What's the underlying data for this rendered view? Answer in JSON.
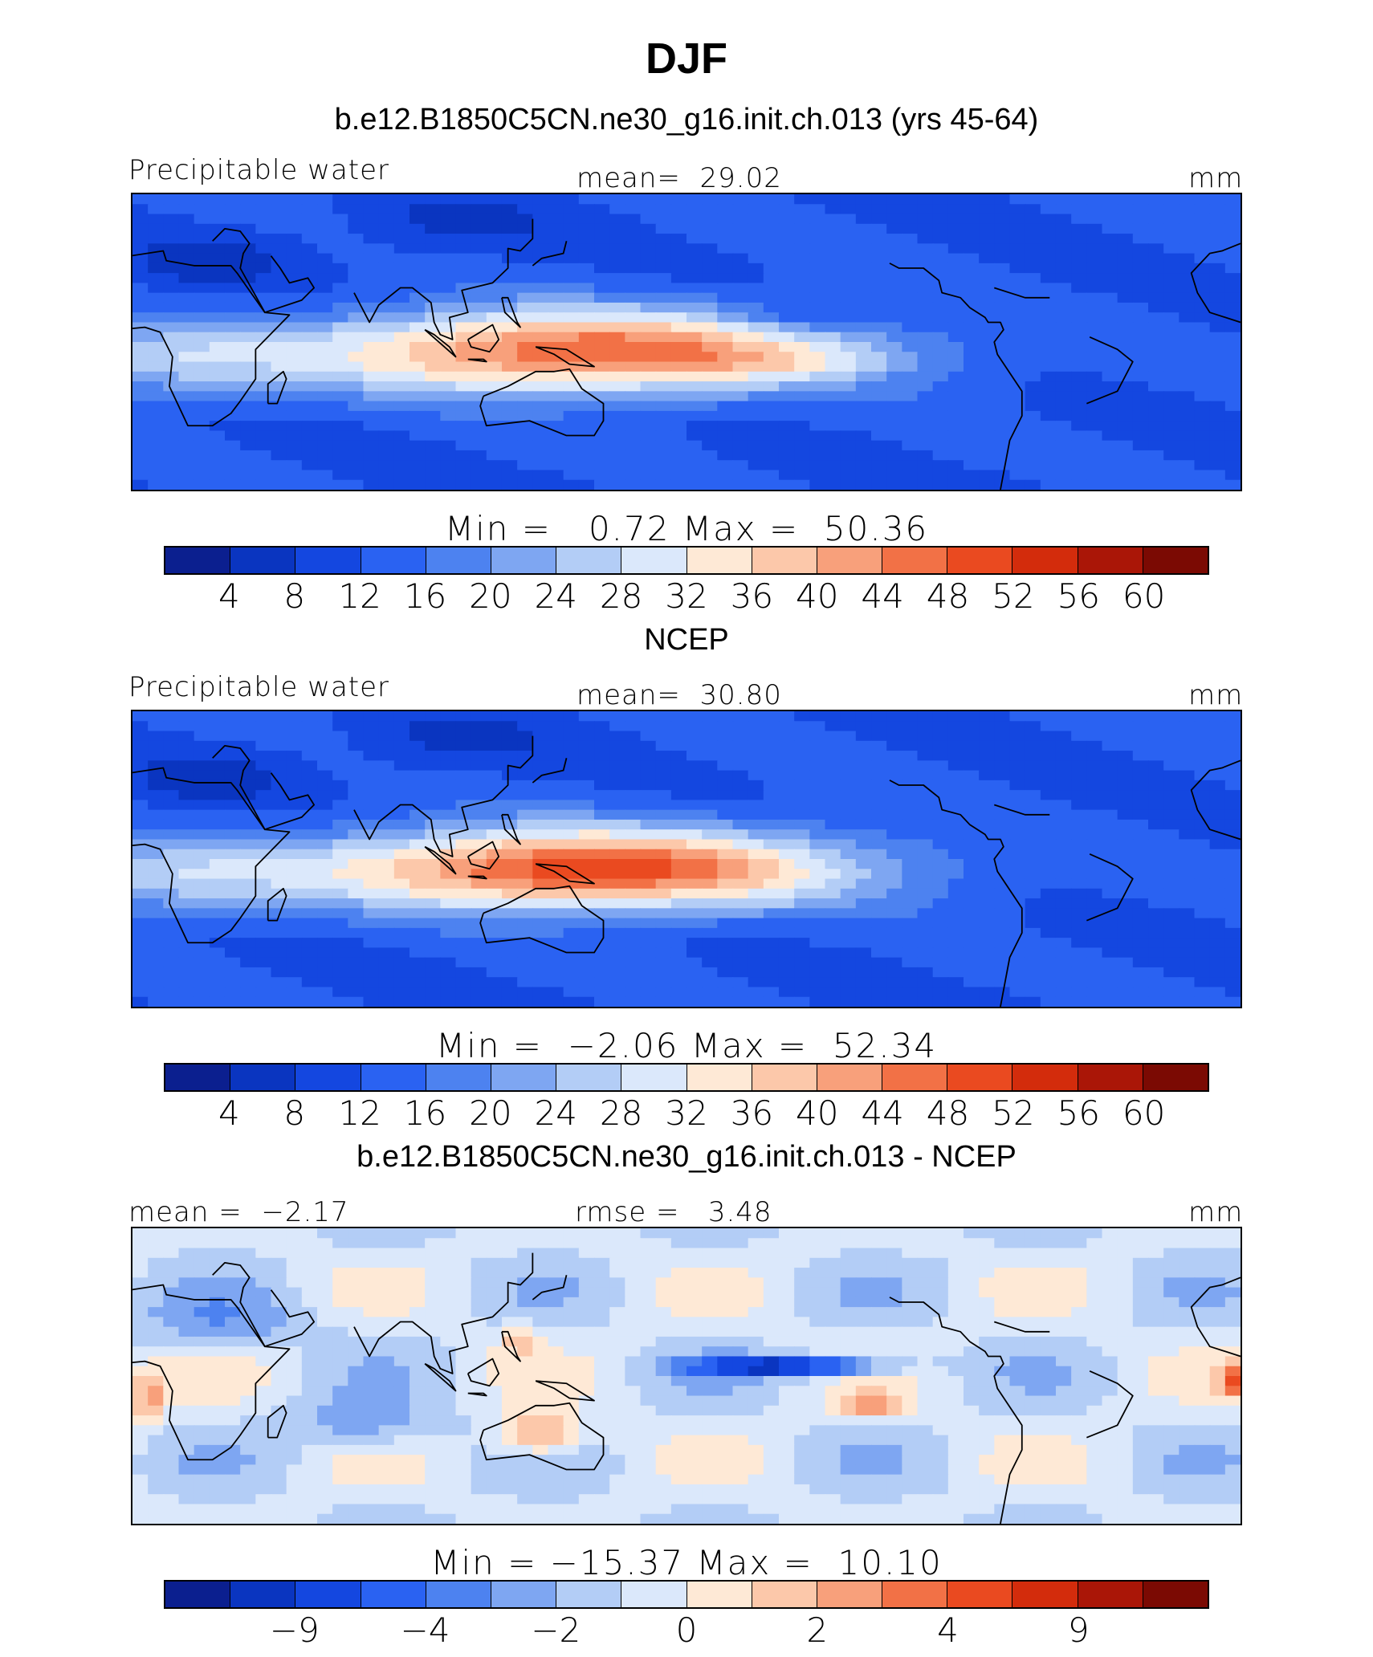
{
  "season_title": "DJF",
  "colors": [
    "#0b1f8f",
    "#0a35c0",
    "#1447e0",
    "#2a62f2",
    "#4d82f0",
    "#7ea6f2",
    "#b3cdf6",
    "#dbe8fb",
    "#fee9d6",
    "#fcc8aa",
    "#f8a07b",
    "#f27146",
    "#ea4a20",
    "#d32c0c",
    "#aa1607",
    "#7b0a03"
  ],
  "land_color": "#000000",
  "panels": [
    {
      "subtitle": "b.e12.B1850C5CN.ne30_g16.init.ch.013 (yrs 45-64)",
      "left_label": "Precipitable water",
      "center_label": "mean=  29.02",
      "right_label": "mm",
      "minmax": "Min =   0.72 Max =  50.36",
      "ticks": [
        "4",
        "8",
        "12",
        "16",
        "20",
        "24",
        "28",
        "32",
        "36",
        "40",
        "44",
        "48",
        "52",
        "56",
        "60"
      ],
      "field": "model"
    },
    {
      "subtitle": "NCEP",
      "left_label": "Precipitable water",
      "center_label": "mean=  30.80",
      "right_label": "mm",
      "minmax": "Min =  −2.06 Max =  52.34",
      "ticks": [
        "4",
        "8",
        "12",
        "16",
        "20",
        "24",
        "28",
        "32",
        "36",
        "40",
        "44",
        "48",
        "52",
        "56",
        "60"
      ],
      "field": "obs"
    },
    {
      "subtitle": "b.e12.B1850C5CN.ne30_g16.init.ch.013 - NCEP",
      "left_label": "mean =  −2.17",
      "center_label": "rmse =   3.48",
      "right_label": "mm",
      "minmax": "Min = −15.37 Max =  10.10",
      "ticks": [
        "−9",
        "−4",
        "−2",
        "0",
        "2",
        "4",
        "9"
      ],
      "field": "diff"
    }
  ]
}
